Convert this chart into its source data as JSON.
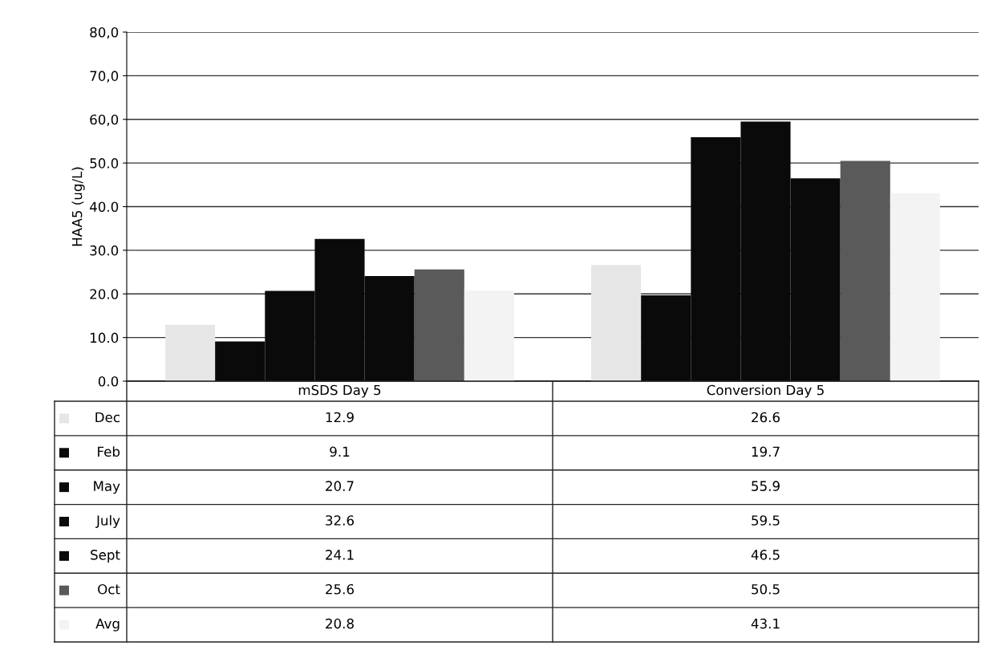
{
  "chart_data": {
    "type": "bar",
    "ylabel": "HAA5 (ug/L)",
    "categories": [
      "mSDS Day 5",
      "Conversion Day 5"
    ],
    "series": [
      {
        "name": "Dec",
        "color": "#e6e6e6",
        "values": [
          12.9,
          26.6
        ]
      },
      {
        "name": "Feb",
        "color": "#0a0a0a",
        "values": [
          9.1,
          19.7
        ]
      },
      {
        "name": "May",
        "color": "#0a0a0a",
        "values": [
          20.7,
          55.9
        ]
      },
      {
        "name": "July",
        "color": "#0a0a0a",
        "values": [
          32.6,
          59.5
        ]
      },
      {
        "name": "Sept",
        "color": "#0a0a0a",
        "values": [
          24.1,
          46.5
        ]
      },
      {
        "name": "Oct",
        "color": "#5a5a5a",
        "values": [
          25.6,
          50.5
        ]
      },
      {
        "name": "Avg",
        "color": "#f3f3f3",
        "values": [
          20.8,
          43.1
        ]
      }
    ],
    "ylim": [
      0,
      80
    ],
    "yticks": [
      {
        "value": 0,
        "label": "0.0"
      },
      {
        "value": 10,
        "label": "10.0"
      },
      {
        "value": 20,
        "label": "20.0"
      },
      {
        "value": 30,
        "label": "30.0"
      },
      {
        "value": 40,
        "label": "40.0"
      },
      {
        "value": 50,
        "label": "50.0"
      },
      {
        "value": 60,
        "label": "60,0"
      },
      {
        "value": 70,
        "label": "70,0"
      },
      {
        "value": 80,
        "label": "80,0"
      }
    ],
    "grid": "y",
    "data_labels": true,
    "legend": "bottom"
  }
}
